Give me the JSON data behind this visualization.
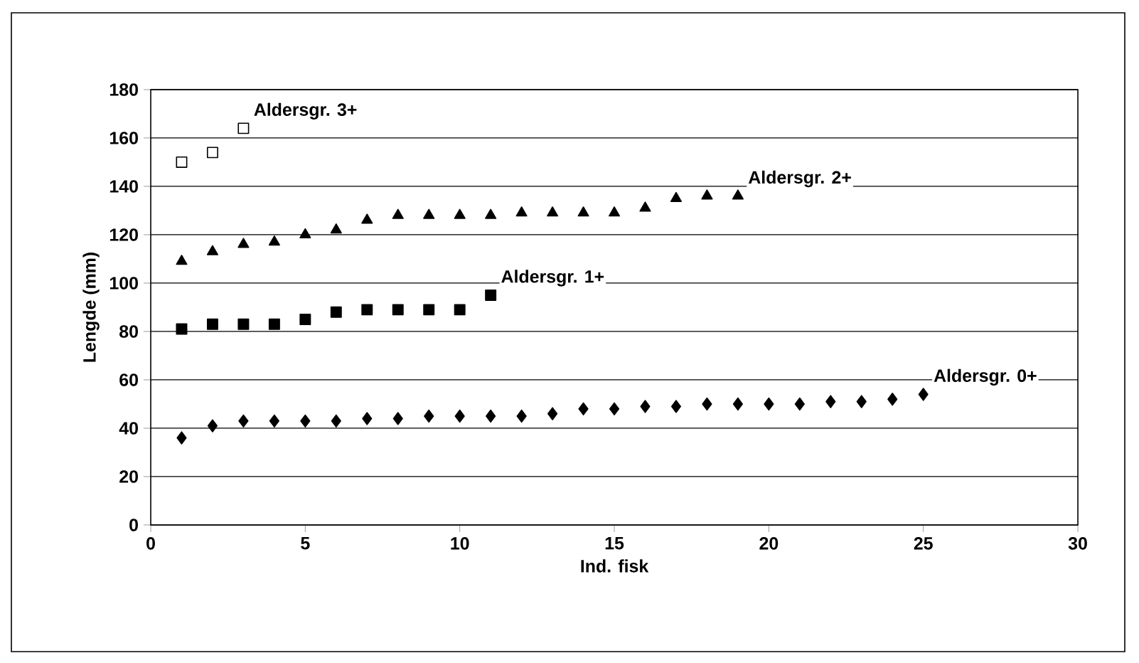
{
  "chart_data": {
    "type": "scatter",
    "xlabel": "Ind. fisk",
    "ylabel": "Lengde (mm)",
    "xlim": [
      0,
      30
    ],
    "xticks": [
      0,
      5,
      10,
      15,
      20,
      25,
      30
    ],
    "ylim": [
      0,
      180
    ],
    "yticks": [
      0,
      20,
      40,
      60,
      80,
      100,
      120,
      140,
      160,
      180
    ],
    "grid": "y",
    "series": [
      {
        "name": "Aldersgr. 0+",
        "color": "#000000",
        "marker": "diamond",
        "x": [
          1,
          2,
          3,
          4,
          5,
          6,
          7,
          8,
          9,
          10,
          11,
          12,
          13,
          14,
          15,
          16,
          17,
          18,
          19,
          20,
          21,
          22,
          23,
          24,
          25
        ],
        "values": [
          36,
          41,
          43,
          43,
          43,
          43,
          44,
          44,
          45,
          45,
          45,
          45,
          46,
          48,
          48,
          49,
          49,
          50,
          50,
          50,
          50,
          51,
          51,
          52,
          54
        ]
      },
      {
        "name": "Aldersgr. 1+",
        "color": "#000000",
        "marker": "square",
        "x": [
          1,
          2,
          3,
          4,
          5,
          6,
          7,
          8,
          9,
          10,
          11
        ],
        "values": [
          81,
          83,
          83,
          83,
          85,
          88,
          89,
          89,
          89,
          89,
          95
        ]
      },
      {
        "name": "Aldersgr. 2+",
        "color": "#000000",
        "marker": "triangle",
        "x": [
          1,
          2,
          3,
          4,
          5,
          6,
          7,
          8,
          9,
          10,
          11,
          12,
          13,
          14,
          15,
          16,
          17,
          18,
          19
        ],
        "values": [
          109,
          113,
          116,
          117,
          120,
          122,
          126,
          128,
          128,
          128,
          128,
          129,
          129,
          129,
          129,
          131,
          135,
          136,
          136
        ]
      },
      {
        "name": "Aldersgr. 3+",
        "color": "#ffffff",
        "marker": "square",
        "x": [
          1,
          2,
          3
        ],
        "values": [
          150,
          154,
          164
        ]
      }
    ]
  }
}
